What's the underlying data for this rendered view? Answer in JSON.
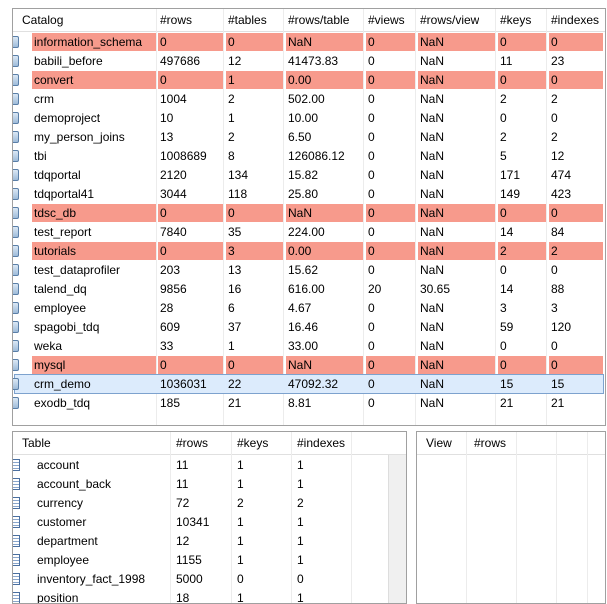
{
  "top_table": {
    "headers": [
      "Catalog",
      "#rows",
      "#tables",
      "#rows/table",
      "#views",
      "#rows/view",
      "#keys",
      "#indexes"
    ],
    "rows": [
      [
        "information_schema",
        "0",
        "0",
        "NaN",
        "0",
        "NaN",
        "0",
        "0"
      ],
      [
        "babili_before",
        "497686",
        "12",
        "41473.83",
        "0",
        "NaN",
        "11",
        "23"
      ],
      [
        "convert",
        "0",
        "1",
        "0.00",
        "0",
        "NaN",
        "0",
        "0"
      ],
      [
        "crm",
        "1004",
        "2",
        "502.00",
        "0",
        "NaN",
        "2",
        "2"
      ],
      [
        "demoproject",
        "10",
        "1",
        "10.00",
        "0",
        "NaN",
        "0",
        "0"
      ],
      [
        "my_person_joins",
        "13",
        "2",
        "6.50",
        "0",
        "NaN",
        "2",
        "2"
      ],
      [
        "tbi",
        "1008689",
        "8",
        "126086.12",
        "0",
        "NaN",
        "5",
        "12"
      ],
      [
        "tdqportal",
        "2120",
        "134",
        "15.82",
        "0",
        "NaN",
        "171",
        "474"
      ],
      [
        "tdqportal41",
        "3044",
        "118",
        "25.80",
        "0",
        "NaN",
        "149",
        "423"
      ],
      [
        "tdsc_db",
        "0",
        "0",
        "NaN",
        "0",
        "NaN",
        "0",
        "0"
      ],
      [
        "test_report",
        "7840",
        "35",
        "224.00",
        "0",
        "NaN",
        "14",
        "84"
      ],
      [
        "tutorials",
        "0",
        "3",
        "0.00",
        "0",
        "NaN",
        "2",
        "2"
      ],
      [
        "test_dataprofiler",
        "203",
        "13",
        "15.62",
        "0",
        "NaN",
        "0",
        "0"
      ],
      [
        "talend_dq",
        "9856",
        "16",
        "616.00",
        "20",
        "30.65",
        "14",
        "88"
      ],
      [
        "employee",
        "28",
        "6",
        "4.67",
        "0",
        "NaN",
        "3",
        "3"
      ],
      [
        "spagobi_tdq",
        "609",
        "37",
        "16.46",
        "0",
        "NaN",
        "59",
        "120"
      ],
      [
        "weka",
        "33",
        "1",
        "33.00",
        "0",
        "NaN",
        "0",
        "0"
      ],
      [
        "mysql",
        "0",
        "0",
        "NaN",
        "0",
        "NaN",
        "0",
        "0"
      ],
      [
        "crm_demo",
        "1036031",
        "22",
        "47092.32",
        "0",
        "NaN",
        "15",
        "15"
      ],
      [
        "exodb_tdq",
        "185",
        "21",
        "8.81",
        "0",
        "NaN",
        "21",
        "21"
      ]
    ],
    "highlight_color": "#f79a8c",
    "highlighted_rows": [
      0,
      2,
      9,
      11,
      17
    ],
    "selected_row": 18
  },
  "table_list": {
    "headers": [
      "Table",
      "#rows",
      "#keys",
      "#indexes"
    ],
    "rows": [
      [
        "account",
        "11",
        "1",
        "1"
      ],
      [
        "account_back",
        "11",
        "1",
        "1"
      ],
      [
        "currency",
        "72",
        "2",
        "2"
      ],
      [
        "customer",
        "10341",
        "1",
        "1"
      ],
      [
        "department",
        "12",
        "1",
        "1"
      ],
      [
        "employee",
        "1155",
        "1",
        "1"
      ],
      [
        "inventory_fact_1998",
        "5000",
        "0",
        "0"
      ],
      [
        "position",
        "18",
        "1",
        "1"
      ]
    ]
  },
  "view_list": {
    "headers": [
      "View",
      "#rows"
    ],
    "rows": []
  }
}
